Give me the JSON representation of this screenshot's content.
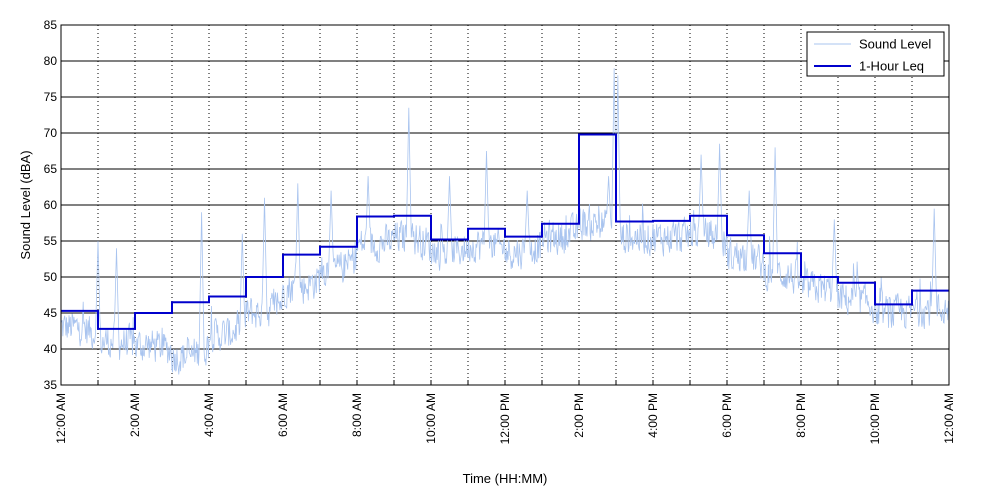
{
  "chart_data": {
    "type": "line",
    "title": "",
    "xlabel": "Time (HH:MM)",
    "ylabel": "Sound Level (dBA)",
    "xlim": [
      0,
      24
    ],
    "ylim": [
      35,
      85
    ],
    "y_ticks": [
      35,
      40,
      45,
      50,
      55,
      60,
      65,
      70,
      75,
      80,
      85
    ],
    "x_ticks": [
      {
        "hour": 0,
        "label": "12:00 AM"
      },
      {
        "hour": 2,
        "label": "2:00 AM"
      },
      {
        "hour": 4,
        "label": "4:00 AM"
      },
      {
        "hour": 6,
        "label": "6:00 AM"
      },
      {
        "hour": 8,
        "label": "8:00 AM"
      },
      {
        "hour": 10,
        "label": "10:00 AM"
      },
      {
        "hour": 12,
        "label": "12:00 PM"
      },
      {
        "hour": 14,
        "label": "2:00 PM"
      },
      {
        "hour": 16,
        "label": "4:00 PM"
      },
      {
        "hour": 18,
        "label": "6:00 PM"
      },
      {
        "hour": 20,
        "label": "8:00 PM"
      },
      {
        "hour": 22,
        "label": "10:00 PM"
      },
      {
        "hour": 24,
        "label": "12:00 AM"
      }
    ],
    "grid": {
      "horizontal": true,
      "vertical": "dotted"
    },
    "legend_position": "top-right",
    "series": [
      {
        "name": "Sound Level",
        "color": "#a9c4ef",
        "style": "thin-line",
        "x_unit": "hour",
        "baseline_hourly": [
          43,
          41,
          40.5,
          39,
          42,
          45,
          48.5,
          51,
          54.5,
          55.5,
          53.5,
          54.5,
          53.5,
          55.5,
          57.5,
          55.5,
          55.5,
          56,
          53,
          50.5,
          48.5,
          47,
          45,
          45.5
        ],
        "peaks": [
          {
            "x": 1.0,
            "y": 55
          },
          {
            "x": 1.5,
            "y": 54
          },
          {
            "x": 3.8,
            "y": 59
          },
          {
            "x": 4.9,
            "y": 56
          },
          {
            "x": 5.5,
            "y": 61
          },
          {
            "x": 6.4,
            "y": 63
          },
          {
            "x": 7.3,
            "y": 62
          },
          {
            "x": 8.3,
            "y": 64
          },
          {
            "x": 9.4,
            "y": 73.5
          },
          {
            "x": 10.5,
            "y": 64
          },
          {
            "x": 11.5,
            "y": 67.5
          },
          {
            "x": 12.6,
            "y": 62
          },
          {
            "x": 14.8,
            "y": 64
          },
          {
            "x": 14.95,
            "y": 79
          },
          {
            "x": 15.05,
            "y": 78
          },
          {
            "x": 17.3,
            "y": 67
          },
          {
            "x": 17.8,
            "y": 68.5
          },
          {
            "x": 18.6,
            "y": 62
          },
          {
            "x": 19.3,
            "y": 68
          },
          {
            "x": 20.9,
            "y": 58
          },
          {
            "x": 23.6,
            "y": 59.5
          }
        ]
      },
      {
        "name": "1-Hour Leq",
        "color": "#0000cc",
        "style": "step",
        "hourly_values": [
          45.3,
          42.8,
          45.0,
          46.5,
          47.3,
          50.0,
          53.1,
          54.2,
          58.4,
          58.5,
          55.2,
          56.7,
          55.6,
          57.4,
          69.8,
          57.7,
          57.8,
          58.5,
          55.8,
          53.3,
          50.0,
          49.2,
          46.2,
          48.1
        ]
      }
    ]
  }
}
